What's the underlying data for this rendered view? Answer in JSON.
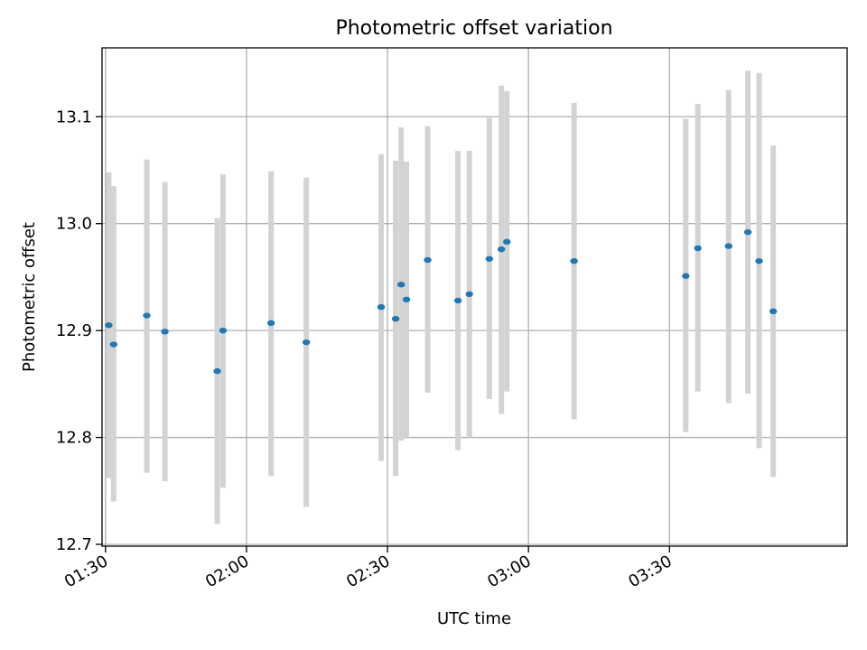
{
  "chart_data": {
    "type": "scatter",
    "title": "Photometric offset variation",
    "xlabel": "UTC time",
    "ylabel": "Photometric offset",
    "xlim": [
      "01:29:16",
      "04:07:48"
    ],
    "ylim": [
      12.6983,
      13.1644
    ],
    "x_ticks": [
      "01:30",
      "02:00",
      "02:30",
      "03:00",
      "03:30"
    ],
    "y_ticks": [
      12.7,
      12.8,
      12.9,
      13.0,
      13.1
    ],
    "y_tick_labels": [
      "12.7",
      "12.8",
      "12.9",
      "13.0",
      "13.1"
    ],
    "grid": true,
    "marker_color": "#1f77b4",
    "errorbar_color": "#d3d3d3",
    "series": [
      {
        "x": [
          "01:30:41",
          "01:31:44",
          "01:38:47",
          "01:42:38",
          "01:53:47",
          "01:55:00",
          "02:05:14",
          "02:12:43",
          "02:28:39",
          "02:31:44",
          "02:32:55",
          "02:34:02",
          "02:38:33",
          "02:45:00",
          "02:47:25",
          "02:51:40",
          "02:54:14",
          "02:55:24",
          "03:09:42",
          "03:33:28",
          "03:36:02",
          "03:42:35",
          "03:46:41",
          "03:49:04",
          "03:52:04"
        ],
        "y": [
          12.905,
          12.887,
          12.914,
          12.899,
          12.862,
          12.9,
          12.907,
          12.889,
          12.922,
          12.911,
          12.943,
          12.929,
          12.966,
          12.928,
          12.934,
          12.967,
          12.976,
          12.983,
          12.965,
          12.951,
          12.977,
          12.979,
          12.992,
          12.965,
          12.918
        ],
        "err_low": [
          12.762,
          12.74,
          12.767,
          12.759,
          12.719,
          12.753,
          12.764,
          12.735,
          12.778,
          12.764,
          12.797,
          12.8,
          12.842,
          12.788,
          12.8,
          12.836,
          12.822,
          12.843,
          12.817,
          12.805,
          12.843,
          12.832,
          12.841,
          12.79,
          12.763
        ],
        "err_high": [
          13.048,
          13.035,
          13.06,
          13.039,
          13.005,
          13.046,
          13.049,
          13.043,
          13.065,
          13.059,
          13.09,
          13.058,
          13.091,
          13.068,
          13.068,
          13.099,
          13.129,
          13.124,
          13.113,
          13.098,
          13.112,
          13.125,
          13.143,
          13.141,
          13.073
        ]
      }
    ]
  }
}
